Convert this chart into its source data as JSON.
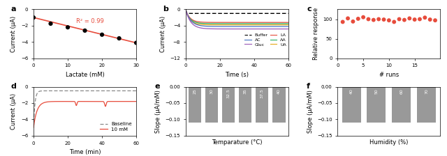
{
  "panel_a": {
    "x": [
      0,
      5,
      10,
      15,
      20,
      25,
      30
    ],
    "y": [
      -1.0,
      -1.75,
      -2.2,
      -2.6,
      -3.1,
      -3.55,
      -4.1
    ],
    "line_x": [
      0,
      30
    ],
    "line_y": [
      -1.0,
      -4.1
    ],
    "r2_text": "R² = 0.99",
    "xlabel": "Lactate (mM)",
    "ylabel": "Current (μA)",
    "ylim": [
      -6,
      0
    ],
    "xlim": [
      0,
      30
    ],
    "label": "a"
  },
  "panel_b": {
    "xlabel": "Time (s)",
    "ylabel": "Current (μA)",
    "ylim": [
      -12,
      0
    ],
    "xlim": [
      0,
      60
    ],
    "label": "b"
  },
  "panel_c": {
    "x": [
      1,
      2,
      3,
      4,
      5,
      6,
      7,
      8,
      9,
      10,
      11,
      12,
      13,
      14,
      15,
      16,
      17,
      18,
      19
    ],
    "y": [
      93,
      102,
      94,
      101,
      105,
      100,
      98,
      100,
      99,
      97,
      93,
      100,
      98,
      102,
      99,
      100,
      104,
      99,
      97
    ],
    "xlabel": "# runs",
    "ylabel": "Relative response",
    "ylim": [
      0,
      125
    ],
    "xlim": [
      0,
      20
    ],
    "label": "c",
    "dot_color": "#E74C3C"
  },
  "panel_d": {
    "xlabel": "Time (min)",
    "ylabel": "Current (μA)",
    "ylim": [
      -6,
      0
    ],
    "xlim": [
      0,
      60
    ],
    "label": "d",
    "baseline_color": "#888888",
    "signal_color": "#E74C3C"
  },
  "panel_e": {
    "categories": [
      "25",
      "30",
      "32.5",
      "35",
      "37.5",
      "40"
    ],
    "values": [
      -0.11,
      -0.11,
      -0.11,
      -0.11,
      -0.11,
      -0.11
    ],
    "xlabel": "Temparature (°C)",
    "ylabel": "Slope (μA/mM)",
    "ylim": [
      -0.15,
      0
    ],
    "label": "e",
    "bar_color": "#999999"
  },
  "panel_f": {
    "categories": [
      "40",
      "50",
      "60",
      "70"
    ],
    "values": [
      -0.11,
      -0.11,
      -0.11,
      -0.11
    ],
    "xlabel": "Humidity (%)",
    "ylabel": "Slope (μA/mM)",
    "ylim": [
      -0.15,
      0
    ],
    "label": "f",
    "bar_color": "#999999"
  }
}
